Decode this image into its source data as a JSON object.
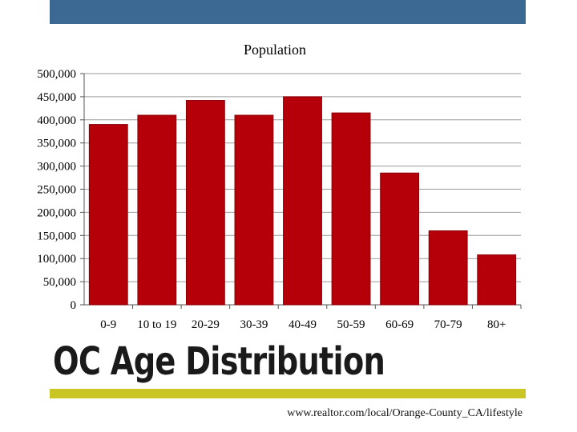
{
  "slide": {
    "title": "OC Age Distribution",
    "source": "www.realtor.com/local/Orange-County_CA/lifestyle"
  },
  "colors": {
    "bar": "#b5000a",
    "bar_stroke": "#8c0007",
    "header_bar": "#3c6894",
    "accent_line": "#c9c524",
    "gridline": "#9a9a9a"
  },
  "chart_data": {
    "type": "bar",
    "title": "Population",
    "xlabel": "",
    "ylabel": "",
    "categories": [
      "0-9",
      "10 to 19",
      "20-29",
      "30-39",
      "40-49",
      "50-59",
      "60-69",
      "70-79",
      "80+"
    ],
    "values": [
      390000,
      410000,
      442000,
      410000,
      450000,
      415000,
      285000,
      160000,
      108000
    ],
    "ylim": [
      0,
      500000
    ],
    "yticks": [
      0,
      50000,
      100000,
      150000,
      200000,
      250000,
      300000,
      350000,
      400000,
      450000,
      500000
    ],
    "ytick_labels": [
      "0",
      "50,000",
      "100,000",
      "150,000",
      "200,000",
      "250,000",
      "300,000",
      "350,000",
      "400,000",
      "450,000",
      "500,000"
    ],
    "grid": true,
    "legend": "none"
  }
}
